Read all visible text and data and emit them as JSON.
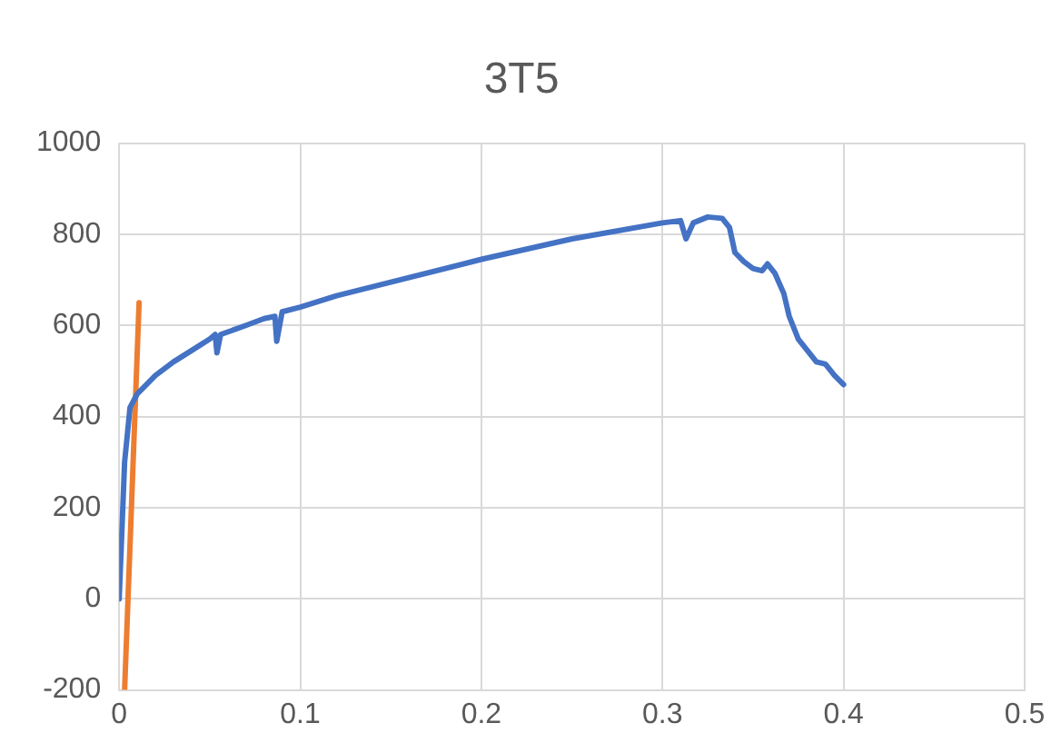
{
  "chart_data": {
    "type": "line",
    "title": "3T5",
    "xlim": [
      0,
      0.5
    ],
    "xticks": [
      0,
      0.1,
      0.2,
      0.3,
      0.4,
      0.5
    ],
    "ylim": [
      -200,
      1000
    ],
    "yticks": [
      -200,
      0,
      200,
      400,
      600,
      800,
      1000
    ],
    "grid": true,
    "legend": false,
    "marker": "none",
    "line_style": "solid",
    "series": [
      {
        "color": "#4472c4",
        "x": [
          0,
          0.003,
          0.006,
          0.01,
          0.02,
          0.03,
          0.04,
          0.05,
          0.053,
          0.054,
          0.056,
          0.07,
          0.08,
          0.086,
          0.087,
          0.09,
          0.1,
          0.12,
          0.15,
          0.2,
          0.25,
          0.3,
          0.31,
          0.313,
          0.317,
          0.325,
          0.333,
          0.337,
          0.34,
          0.345,
          0.35,
          0.355,
          0.358,
          0.362,
          0.367,
          0.37,
          0.375,
          0.38,
          0.385,
          0.39,
          0.395,
          0.4
        ],
        "values": [
          0,
          300,
          420,
          450,
          490,
          520,
          545,
          570,
          580,
          540,
          580,
          600,
          615,
          620,
          565,
          630,
          640,
          665,
          695,
          745,
          790,
          825,
          830,
          790,
          825,
          838,
          835,
          815,
          760,
          740,
          725,
          720,
          735,
          715,
          670,
          620,
          570,
          545,
          520,
          515,
          490,
          470
        ]
      },
      {
        "color": "#ed7d31",
        "x": [
          0.003,
          0.011
        ],
        "values": [
          -200,
          650
        ]
      }
    ]
  }
}
